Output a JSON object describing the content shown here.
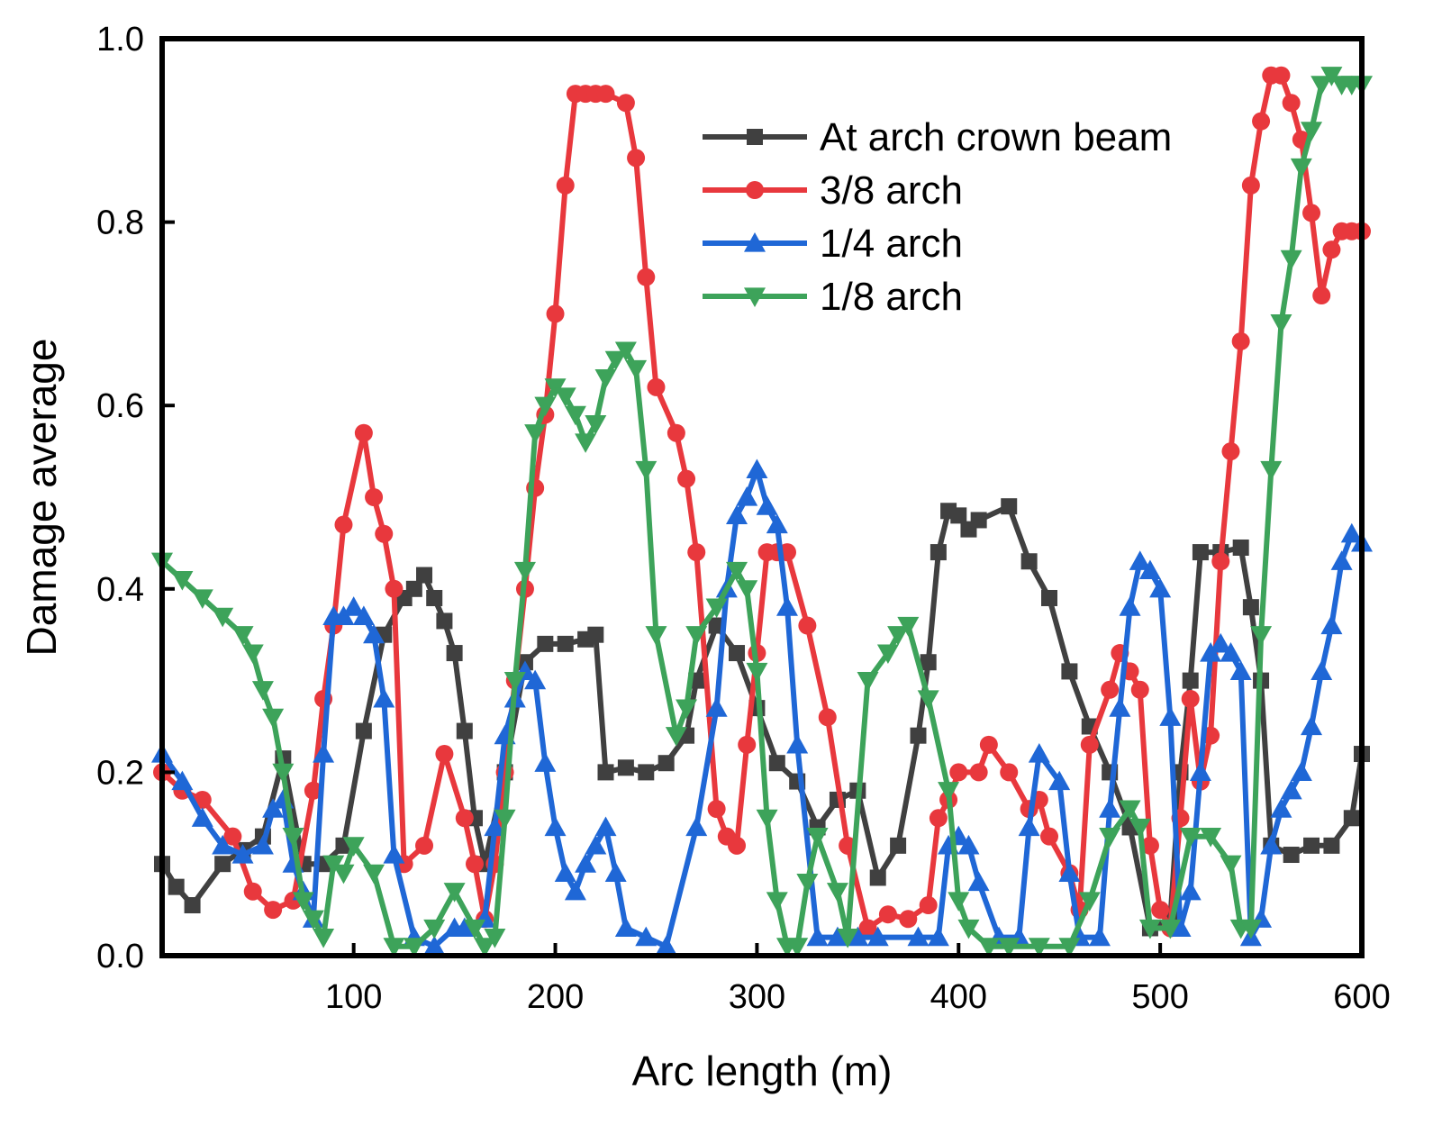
{
  "chart_data": {
    "type": "line",
    "title": "",
    "xlabel": "Arc length (m)",
    "ylabel": "Damage average",
    "xlim": [
      5,
      600
    ],
    "ylim": [
      0,
      1.0
    ],
    "xticks": [
      100,
      200,
      300,
      400,
      500,
      600
    ],
    "yticks": [
      0.0,
      0.2,
      0.4,
      0.6,
      0.8,
      1.0
    ],
    "xtick_labels": [
      "100",
      "200",
      "300",
      "400",
      "500",
      "600"
    ],
    "ytick_labels": [
      "0.0",
      "0.2",
      "0.4",
      "0.6",
      "0.8",
      "1.0"
    ],
    "legend_position": "top-right",
    "series": [
      {
        "name": "At arch crown beam",
        "color": "#404040",
        "marker": "square",
        "x": [
          5,
          12,
          20,
          35,
          45,
          55,
          65,
          75,
          85,
          95,
          105,
          115,
          125,
          130,
          135,
          140,
          145,
          150,
          155,
          160,
          165,
          175,
          185,
          195,
          205,
          215,
          220,
          225,
          235,
          245,
          255,
          265,
          270,
          280,
          290,
          300,
          310,
          320,
          330,
          340,
          350,
          360,
          370,
          380,
          385,
          390,
          395,
          400,
          405,
          410,
          425,
          435,
          445,
          455,
          465,
          475,
          485,
          495,
          505,
          510,
          515,
          520,
          530,
          540,
          545,
          550,
          555,
          565,
          575,
          585,
          595,
          600
        ],
        "y": [
          0.1,
          0.075,
          0.055,
          0.1,
          0.115,
          0.13,
          0.215,
          0.1,
          0.1,
          0.12,
          0.245,
          0.35,
          0.39,
          0.4,
          0.415,
          0.39,
          0.365,
          0.33,
          0.245,
          0.15,
          0.1,
          0.2,
          0.32,
          0.34,
          0.34,
          0.345,
          0.35,
          0.2,
          0.205,
          0.2,
          0.21,
          0.24,
          0.3,
          0.36,
          0.33,
          0.27,
          0.21,
          0.19,
          0.14,
          0.17,
          0.18,
          0.085,
          0.12,
          0.24,
          0.32,
          0.44,
          0.485,
          0.48,
          0.465,
          0.475,
          0.49,
          0.43,
          0.39,
          0.31,
          0.25,
          0.2,
          0.14,
          0.03,
          0.04,
          0.2,
          0.3,
          0.44,
          0.44,
          0.445,
          0.38,
          0.3,
          0.12,
          0.11,
          0.12,
          0.12,
          0.15,
          0.22
        ]
      },
      {
        "name": "3/8 arch",
        "color": "#e8383d",
        "marker": "circle",
        "x": [
          5,
          15,
          25,
          40,
          50,
          60,
          70,
          80,
          85,
          90,
          95,
          105,
          110,
          115,
          120,
          125,
          135,
          145,
          155,
          160,
          165,
          170,
          175,
          180,
          185,
          190,
          195,
          200,
          205,
          210,
          215,
          220,
          225,
          235,
          240,
          245,
          250,
          260,
          265,
          270,
          280,
          285,
          290,
          295,
          300,
          305,
          310,
          315,
          325,
          335,
          345,
          355,
          365,
          375,
          385,
          390,
          395,
          400,
          410,
          415,
          425,
          435,
          440,
          445,
          455,
          460,
          465,
          475,
          480,
          485,
          490,
          495,
          500,
          505,
          510,
          515,
          520,
          525,
          530,
          535,
          540,
          545,
          550,
          555,
          560,
          565,
          570,
          575,
          580,
          585,
          590,
          595,
          600
        ],
        "y": [
          0.2,
          0.18,
          0.17,
          0.13,
          0.07,
          0.05,
          0.06,
          0.18,
          0.28,
          0.36,
          0.47,
          0.57,
          0.5,
          0.46,
          0.4,
          0.1,
          0.12,
          0.22,
          0.15,
          0.1,
          0.04,
          0.1,
          0.2,
          0.3,
          0.4,
          0.51,
          0.59,
          0.7,
          0.84,
          0.94,
          0.94,
          0.94,
          0.94,
          0.93,
          0.87,
          0.74,
          0.62,
          0.57,
          0.52,
          0.44,
          0.16,
          0.13,
          0.12,
          0.23,
          0.33,
          0.44,
          0.44,
          0.44,
          0.36,
          0.26,
          0.12,
          0.03,
          0.045,
          0.04,
          0.055,
          0.15,
          0.17,
          0.2,
          0.2,
          0.23,
          0.2,
          0.16,
          0.17,
          0.13,
          0.09,
          0.05,
          0.23,
          0.29,
          0.33,
          0.31,
          0.29,
          0.12,
          0.05,
          0.03,
          0.15,
          0.28,
          0.19,
          0.24,
          0.43,
          0.55,
          0.67,
          0.84,
          0.91,
          0.96,
          0.96,
          0.93,
          0.89,
          0.81,
          0.72,
          0.77,
          0.79,
          0.79,
          0.79
        ]
      },
      {
        "name": "1/4 arch",
        "color": "#1f67d6",
        "marker": "triangle-up",
        "x": [
          5,
          15,
          25,
          35,
          45,
          55,
          60,
          65,
          70,
          75,
          80,
          85,
          90,
          95,
          100,
          105,
          110,
          115,
          120,
          130,
          140,
          150,
          155,
          165,
          170,
          175,
          180,
          185,
          190,
          195,
          200,
          205,
          210,
          215,
          220,
          225,
          230,
          235,
          245,
          255,
          270,
          280,
          285,
          290,
          295,
          300,
          305,
          310,
          315,
          320,
          330,
          340,
          350,
          360,
          380,
          390,
          395,
          400,
          405,
          410,
          420,
          430,
          435,
          440,
          450,
          455,
          460,
          470,
          475,
          480,
          485,
          490,
          495,
          500,
          505,
          510,
          515,
          520,
          525,
          530,
          535,
          540,
          545,
          550,
          555,
          560,
          565,
          570,
          575,
          580,
          585,
          590,
          595,
          600
        ],
        "y": [
          0.22,
          0.19,
          0.15,
          0.12,
          0.11,
          0.12,
          0.16,
          0.17,
          0.1,
          0.07,
          0.04,
          0.22,
          0.37,
          0.37,
          0.38,
          0.37,
          0.35,
          0.28,
          0.11,
          0.02,
          0.01,
          0.03,
          0.03,
          0.04,
          0.14,
          0.24,
          0.28,
          0.31,
          0.3,
          0.21,
          0.14,
          0.09,
          0.07,
          0.1,
          0.12,
          0.14,
          0.09,
          0.03,
          0.02,
          0.01,
          0.14,
          0.27,
          0.4,
          0.48,
          0.5,
          0.53,
          0.49,
          0.47,
          0.38,
          0.23,
          0.02,
          0.02,
          0.02,
          0.02,
          0.02,
          0.02,
          0.12,
          0.13,
          0.12,
          0.08,
          0.02,
          0.02,
          0.14,
          0.22,
          0.19,
          0.09,
          0.02,
          0.02,
          0.16,
          0.27,
          0.38,
          0.43,
          0.42,
          0.4,
          0.26,
          0.03,
          0.07,
          0.2,
          0.33,
          0.34,
          0.33,
          0.31,
          0.02,
          0.04,
          0.12,
          0.16,
          0.18,
          0.2,
          0.25,
          0.31,
          0.36,
          0.43,
          0.46,
          0.45
        ]
      },
      {
        "name": "1/8 arch",
        "color": "#3da35a",
        "marker": "triangle-down",
        "x": [
          5,
          15,
          25,
          35,
          45,
          50,
          55,
          60,
          65,
          70,
          75,
          80,
          85,
          90,
          95,
          100,
          110,
          120,
          130,
          140,
          150,
          160,
          165,
          170,
          175,
          180,
          185,
          190,
          195,
          200,
          205,
          210,
          215,
          220,
          225,
          230,
          235,
          240,
          245,
          250,
          260,
          265,
          270,
          280,
          290,
          295,
          300,
          305,
          310,
          315,
          320,
          325,
          330,
          340,
          345,
          355,
          365,
          370,
          375,
          385,
          395,
          400,
          405,
          415,
          425,
          440,
          455,
          465,
          475,
          485,
          490,
          495,
          505,
          515,
          525,
          535,
          540,
          545,
          550,
          555,
          560,
          565,
          570,
          575,
          580,
          585,
          590,
          595,
          600
        ],
        "y": [
          0.43,
          0.41,
          0.39,
          0.37,
          0.35,
          0.33,
          0.29,
          0.26,
          0.2,
          0.13,
          0.06,
          0.04,
          0.02,
          0.1,
          0.09,
          0.12,
          0.09,
          0.01,
          0.01,
          0.03,
          0.07,
          0.03,
          0.01,
          0.02,
          0.15,
          0.3,
          0.42,
          0.57,
          0.6,
          0.62,
          0.61,
          0.59,
          0.56,
          0.58,
          0.63,
          0.65,
          0.66,
          0.64,
          0.53,
          0.35,
          0.24,
          0.27,
          0.35,
          0.38,
          0.42,
          0.4,
          0.31,
          0.15,
          0.06,
          0.01,
          0.01,
          0.08,
          0.13,
          0.07,
          0.02,
          0.3,
          0.33,
          0.35,
          0.36,
          0.28,
          0.18,
          0.06,
          0.03,
          0.01,
          0.01,
          0.01,
          0.01,
          0.06,
          0.13,
          0.16,
          0.14,
          0.03,
          0.03,
          0.13,
          0.13,
          0.1,
          0.03,
          0.03,
          0.35,
          0.53,
          0.69,
          0.76,
          0.86,
          0.9,
          0.95,
          0.96,
          0.95,
          0.95,
          0.95
        ]
      }
    ]
  }
}
